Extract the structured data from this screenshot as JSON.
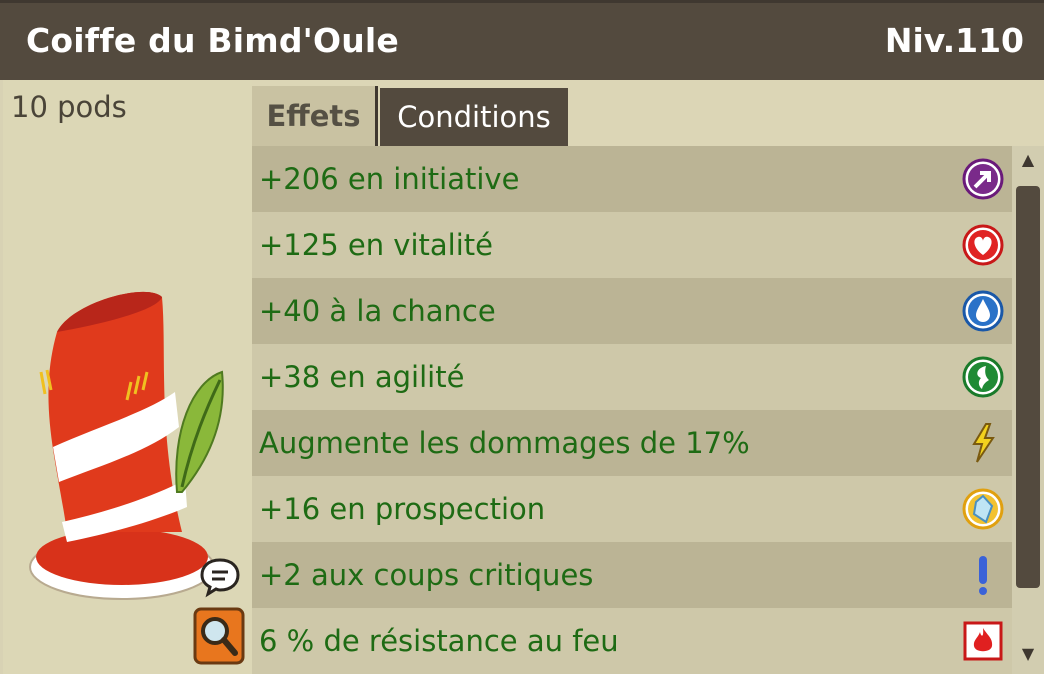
{
  "item": {
    "name": "Coiffe du Bimd'Oule",
    "level": "Niv.110",
    "weight": "10 pods"
  },
  "tabs": [
    {
      "label": "Effets",
      "active": true
    },
    {
      "label": "Conditions",
      "active": false
    }
  ],
  "effects": [
    {
      "text": "+206 en initiative",
      "icon": "initiative-icon"
    },
    {
      "text": "+125 en vitalité",
      "icon": "vitality-heart-icon"
    },
    {
      "text": "+40 à la chance",
      "icon": "chance-water-drop-icon"
    },
    {
      "text": "+38 en agilité",
      "icon": "agility-leaf-icon"
    },
    {
      "text": "Augmente les dommages de 17%",
      "icon": "damage-lightning-icon"
    },
    {
      "text": "+16 en prospection",
      "icon": "prospecting-gem-icon"
    },
    {
      "text": "+2 aux coups critiques",
      "icon": "critical-exclamation-icon"
    },
    {
      "text": "6 % de résistance au feu",
      "icon": "fire-resistance-icon"
    }
  ],
  "colors": {
    "header_bg": "#534a3e",
    "effect_text": "#1e6b14",
    "row_dark": "#bbb495",
    "row_light": "#cec8a9"
  }
}
